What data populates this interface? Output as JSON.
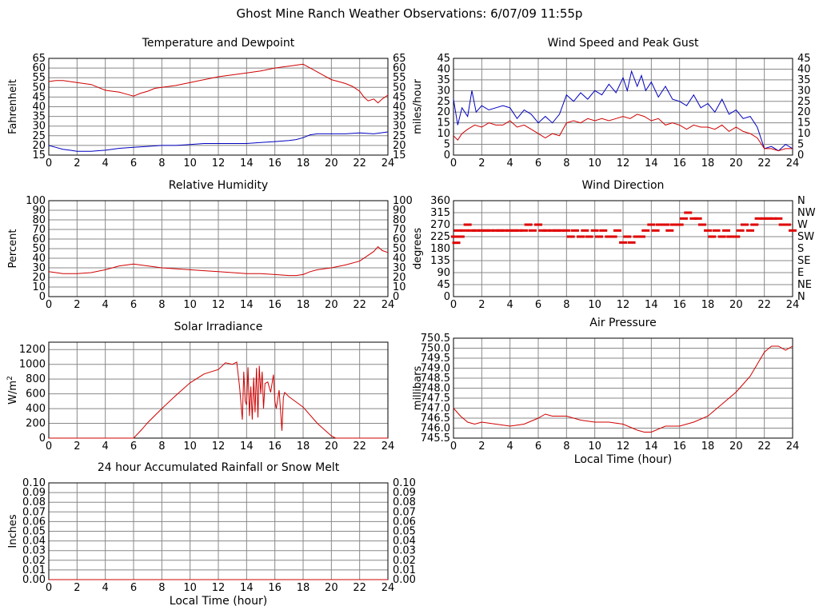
{
  "page": {
    "title": "Ghost Mine Ranch Weather Observations: 6/07/09 11:55p"
  },
  "chart_data": [
    {
      "id": "temp",
      "type": "line",
      "title": "Temperature and Dewpoint",
      "ylabel": "Fahrenheit",
      "xlabel": "",
      "xlim": [
        0,
        24
      ],
      "ylim": [
        15,
        65
      ],
      "x_ticks": [
        "0",
        "2",
        "4",
        "6",
        "8",
        "10",
        "12",
        "14",
        "16",
        "18",
        "20",
        "22",
        "24"
      ],
      "y_ticks": [
        "15",
        "20",
        "25",
        "30",
        "35",
        "40",
        "45",
        "50",
        "55",
        "60",
        "65"
      ],
      "right_ticks": [
        "15",
        "20",
        "25",
        "30",
        "35",
        "40",
        "45",
        "50",
        "55",
        "60",
        "65"
      ],
      "grid": true,
      "series": [
        {
          "color": "#d00000",
          "x": [
            0,
            0.5,
            1,
            1.5,
            2,
            2.5,
            3,
            3.5,
            4,
            4.5,
            5,
            5.5,
            6,
            6.5,
            7,
            7.5,
            8,
            9,
            10,
            11,
            12,
            13,
            14,
            15,
            16,
            16.5,
            17,
            17.5,
            18,
            18.5,
            19,
            19.5,
            20,
            20.5,
            21,
            21.5,
            22,
            22.3,
            22.6,
            23,
            23.3,
            23.6,
            24
          ],
          "y": [
            53,
            53.5,
            53.5,
            53,
            52.5,
            52,
            51.5,
            50,
            48.5,
            48,
            47.5,
            46.5,
            45.5,
            47,
            48,
            49.5,
            50,
            51,
            52.5,
            54,
            55.5,
            56.5,
            57.5,
            58.5,
            60,
            60.5,
            61,
            61.5,
            62,
            60,
            58,
            56,
            54,
            53,
            52,
            50.5,
            48,
            45,
            43,
            44,
            42,
            44,
            46
          ]
        },
        {
          "color": "#0000c0",
          "x": [
            0,
            0.5,
            1,
            1.5,
            2,
            3,
            4,
            5,
            6,
            7,
            8,
            9,
            10,
            11,
            12,
            13,
            14,
            15,
            16,
            17,
            17.5,
            18,
            18.5,
            19,
            20,
            21,
            22,
            23,
            24
          ],
          "y": [
            20,
            19,
            18,
            17.5,
            17,
            17,
            17.5,
            18.5,
            19,
            19.5,
            20,
            20,
            20.5,
            21,
            21,
            21,
            21,
            21.5,
            22,
            22.5,
            23,
            24,
            25.5,
            26,
            26,
            26,
            26.5,
            26,
            27
          ]
        }
      ]
    },
    {
      "id": "wind",
      "type": "line",
      "title": "Wind Speed and Peak Gust",
      "ylabel": "miles/hour",
      "xlabel": "",
      "xlim": [
        0,
        24
      ],
      "ylim": [
        0,
        45
      ],
      "x_ticks": [
        "0",
        "2",
        "4",
        "6",
        "8",
        "10",
        "12",
        "14",
        "16",
        "18",
        "20",
        "22",
        "24"
      ],
      "y_ticks": [
        "0",
        "5",
        "10",
        "15",
        "20",
        "25",
        "30",
        "35",
        "40",
        "45"
      ],
      "right_ticks": [
        "0",
        "5",
        "10",
        "15",
        "20",
        "25",
        "30",
        "35",
        "40",
        "45"
      ],
      "grid": true,
      "series": [
        {
          "color": "#0000c0",
          "x": [
            0,
            0.3,
            0.6,
            1,
            1.3,
            1.6,
            2,
            2.5,
            3,
            3.5,
            4,
            4.5,
            5,
            5.5,
            6,
            6.5,
            7,
            7.5,
            8,
            8.5,
            9,
            9.5,
            10,
            10.5,
            11,
            11.5,
            12,
            12.3,
            12.6,
            13,
            13.3,
            13.6,
            14,
            14.5,
            15,
            15.5,
            16,
            16.5,
            17,
            17.5,
            18,
            18.5,
            19,
            19.5,
            20,
            20.5,
            21,
            21.5,
            22,
            22.5,
            23,
            23.5,
            24
          ],
          "y": [
            26,
            14,
            22,
            18,
            30,
            20,
            23,
            21,
            22,
            23,
            22,
            17,
            21,
            19,
            15,
            18,
            15,
            19,
            28,
            25,
            29,
            26,
            30,
            28,
            33,
            29,
            36,
            30,
            39,
            32,
            37,
            30,
            34,
            27,
            32,
            26,
            25,
            23,
            28,
            22,
            24,
            20,
            26,
            19,
            21,
            17,
            18,
            13,
            3,
            4,
            2,
            5,
            3
          ]
        },
        {
          "color": "#d00000",
          "x": [
            0,
            0.3,
            0.6,
            1,
            1.5,
            2,
            2.5,
            3,
            3.5,
            4,
            4.5,
            5,
            5.5,
            6,
            6.5,
            7,
            7.5,
            8,
            8.5,
            9,
            9.5,
            10,
            10.5,
            11,
            11.5,
            12,
            12.5,
            13,
            13.5,
            14,
            14.5,
            15,
            15.5,
            16,
            16.5,
            17,
            17.5,
            18,
            18.5,
            19,
            19.5,
            20,
            20.5,
            21,
            21.5,
            22,
            22.5,
            23,
            23.5,
            24
          ],
          "y": [
            9,
            7,
            10,
            12,
            14,
            13,
            15,
            14,
            14,
            16,
            13,
            14,
            12,
            10,
            8,
            10,
            9,
            15,
            16,
            15,
            17,
            16,
            17,
            16,
            17,
            18,
            17,
            19,
            18,
            16,
            17,
            14,
            15,
            14,
            12,
            14,
            13,
            13,
            12,
            14,
            11,
            13,
            11,
            10,
            8,
            3,
            3,
            2,
            3,
            3
          ]
        }
      ]
    },
    {
      "id": "rh",
      "type": "line",
      "title": "Relative Humidity",
      "ylabel": "Percent",
      "xlabel": "",
      "xlim": [
        0,
        24
      ],
      "ylim": [
        0,
        100
      ],
      "x_ticks": [
        "0",
        "2",
        "4",
        "6",
        "8",
        "10",
        "12",
        "14",
        "16",
        "18",
        "20",
        "22",
        "24"
      ],
      "y_ticks": [
        "0",
        "10",
        "20",
        "30",
        "40",
        "50",
        "60",
        "70",
        "80",
        "90",
        "100"
      ],
      "right_ticks": [
        "0",
        "10",
        "20",
        "30",
        "40",
        "50",
        "60",
        "70",
        "80",
        "90",
        "100"
      ],
      "grid": true,
      "series": [
        {
          "color": "#d00000",
          "x": [
            0,
            0.5,
            1,
            2,
            3,
            4,
            5,
            6,
            7,
            8,
            9,
            10,
            11,
            12,
            13,
            14,
            15,
            16,
            17,
            17.5,
            18,
            18.5,
            19,
            20,
            21,
            22,
            22.5,
            23,
            23.3,
            23.6,
            24
          ],
          "y": [
            26,
            25,
            24,
            24,
            25,
            28,
            32,
            34,
            32,
            30,
            29,
            28,
            27,
            26,
            25,
            24,
            24,
            23,
            22,
            22,
            23,
            26,
            28,
            30,
            33,
            37,
            42,
            47,
            52,
            48,
            46
          ]
        }
      ]
    },
    {
      "id": "winddir",
      "type": "scatter",
      "title": "Wind Direction",
      "ylabel": "degrees",
      "xlabel": "",
      "xlim": [
        0,
        24
      ],
      "ylim": [
        0,
        360
      ],
      "x_ticks": [
        "0",
        "2",
        "4",
        "6",
        "8",
        "10",
        "12",
        "14",
        "16",
        "18",
        "20",
        "22",
        "24"
      ],
      "y_ticks": [
        "0",
        "45",
        "90",
        "135",
        "180",
        "225",
        "270",
        "315",
        "360"
      ],
      "right_ticks": [
        "N",
        "NE",
        "E",
        "SE",
        "S",
        "SW",
        "W",
        "NW",
        "N"
      ],
      "grid": true,
      "series": [
        {
          "color": "#e00000",
          "x": [
            0.1,
            0.2,
            0.3,
            0.5,
            0.8,
            1,
            1.3,
            1.6,
            2,
            2.3,
            2.6,
            3,
            3.3,
            3.6,
            4,
            4.3,
            4.6,
            5,
            5.3,
            5.6,
            6,
            6.3,
            6.6,
            7,
            7.3,
            7.6,
            8,
            8.3,
            8.6,
            9,
            9.3,
            9.6,
            10,
            10.3,
            10.6,
            11,
            11.3,
            11.6,
            12,
            12.3,
            12.6,
            13,
            13.3,
            13.6,
            14,
            14.3,
            14.6,
            15,
            15.3,
            15.6,
            16,
            16.3,
            16.6,
            17,
            17.3,
            17.6,
            18,
            18.3,
            18.6,
            19,
            19.3,
            19.6,
            20,
            20.3,
            20.6,
            21,
            21.3,
            21.6,
            22,
            22.3,
            22.6,
            23,
            23.3,
            23.6,
            24
          ],
          "y": [
            225,
            202,
            248,
            225,
            248,
            270,
            248,
            248,
            248,
            248,
            248,
            248,
            248,
            248,
            248,
            248,
            248,
            248,
            270,
            248,
            270,
            248,
            248,
            248,
            248,
            248,
            248,
            225,
            248,
            225,
            248,
            225,
            248,
            225,
            248,
            225,
            225,
            248,
            203,
            225,
            203,
            225,
            225,
            248,
            270,
            248,
            270,
            270,
            248,
            270,
            270,
            293,
            315,
            293,
            293,
            270,
            248,
            225,
            248,
            225,
            248,
            225,
            225,
            248,
            270,
            248,
            270,
            293,
            293,
            293,
            293,
            293,
            270,
            270,
            248
          ]
        }
      ]
    },
    {
      "id": "solar",
      "type": "line",
      "title": "Solar Irradiance",
      "ylabel": "W/m",
      "ylabel_sup": "2",
      "xlabel": "",
      "xlim": [
        0,
        24
      ],
      "ylim": [
        0,
        1300
      ],
      "x_ticks": [
        "0",
        "2",
        "4",
        "6",
        "8",
        "10",
        "12",
        "14",
        "16",
        "18",
        "20",
        "22",
        "24"
      ],
      "y_ticks": [
        "0",
        "200",
        "400",
        "600",
        "800",
        "1000",
        "1200"
      ],
      "y_tick_values": [
        0,
        200,
        400,
        600,
        800,
        1000,
        1200
      ],
      "grid": true,
      "series": [
        {
          "color": "#d00000",
          "x": [
            0,
            5,
            6,
            6.3,
            6.6,
            7,
            8,
            9,
            10,
            11,
            12,
            12.5,
            13,
            13.3,
            13.5,
            13.7,
            13.8,
            13.9,
            14,
            14.1,
            14.2,
            14.3,
            14.4,
            14.5,
            14.6,
            14.7,
            14.8,
            14.9,
            15,
            15.1,
            15.2,
            15.3,
            15.5,
            15.7,
            15.9,
            16,
            16.1,
            16.3,
            16.5,
            16.6,
            16.7,
            17,
            18,
            19,
            20,
            20.3,
            21,
            22,
            23,
            24
          ],
          "y": [
            0,
            0,
            0,
            60,
            120,
            210,
            400,
            580,
            750,
            870,
            930,
            1020,
            1000,
            1030,
            700,
            250,
            900,
            500,
            450,
            960,
            300,
            700,
            250,
            820,
            350,
            950,
            280,
            980,
            600,
            900,
            400,
            740,
            760,
            620,
            860,
            500,
            400,
            650,
            100,
            550,
            620,
            560,
            420,
            200,
            30,
            0,
            0,
            0,
            0,
            0
          ]
        }
      ]
    },
    {
      "id": "pressure",
      "type": "line",
      "title": "Air Pressure",
      "ylabel": "millibars",
      "xlabel": "Local Time (hour)",
      "xlim": [
        0,
        24
      ],
      "ylim": [
        745.5,
        750.5
      ],
      "x_ticks": [
        "0",
        "2",
        "4",
        "6",
        "8",
        "10",
        "12",
        "14",
        "16",
        "18",
        "20",
        "22",
        "24"
      ],
      "y_ticks": [
        "745.5",
        "746.0",
        "746.5",
        "747.0",
        "747.5",
        "748.0",
        "748.5",
        "749.0",
        "749.5",
        "750.0",
        "750.5"
      ],
      "grid": true,
      "series": [
        {
          "color": "#d00000",
          "x": [
            0,
            0.5,
            1,
            1.5,
            2,
            3,
            4,
            5,
            6,
            6.5,
            7,
            8,
            9,
            10,
            11,
            12,
            13,
            13.5,
            14,
            15,
            16,
            17,
            18,
            18.5,
            19,
            20,
            20.5,
            21,
            21.5,
            22,
            22.5,
            23,
            23.5,
            24
          ],
          "y": [
            747,
            746.6,
            746.3,
            746.2,
            746.3,
            746.2,
            746.1,
            746.2,
            746.5,
            746.7,
            746.6,
            746.6,
            746.4,
            746.3,
            746.3,
            746.2,
            745.9,
            745.8,
            745.8,
            746.1,
            746.1,
            746.3,
            746.6,
            746.9,
            747.2,
            747.8,
            748.2,
            748.6,
            749.2,
            749.8,
            750.1,
            750.1,
            749.9,
            750.1
          ]
        }
      ]
    },
    {
      "id": "rain",
      "type": "line",
      "title": "24 hour Accumulated Rainfall or Snow Melt",
      "ylabel": "Inches",
      "xlabel": "Local Time (hour)",
      "xlim": [
        0,
        24
      ],
      "ylim": [
        0,
        0.1
      ],
      "x_ticks": [
        "0",
        "2",
        "4",
        "6",
        "8",
        "10",
        "12",
        "14",
        "16",
        "18",
        "20",
        "22",
        "24"
      ],
      "y_ticks": [
        "0.00",
        "0.01",
        "0.02",
        "0.03",
        "0.04",
        "0.05",
        "0.06",
        "0.07",
        "0.08",
        "0.09",
        "0.10"
      ],
      "right_ticks": [
        "0.00",
        "0.01",
        "0.02",
        "0.03",
        "0.04",
        "0.05",
        "0.06",
        "0.07",
        "0.08",
        "0.09",
        "0.10"
      ],
      "grid": true,
      "series": [
        {
          "color": "#d00000",
          "x": [
            0,
            24
          ],
          "y": [
            0,
            0
          ]
        }
      ]
    }
  ]
}
